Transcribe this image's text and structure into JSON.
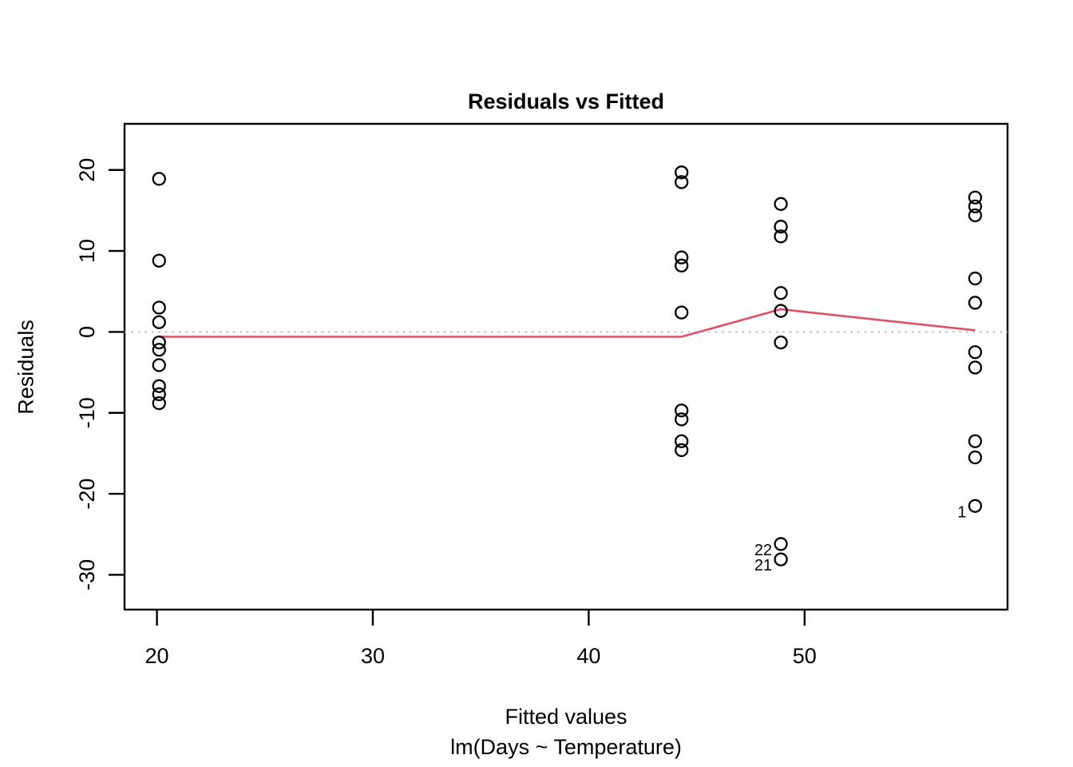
{
  "chart_data": {
    "type": "scatter",
    "title": "Residuals vs Fitted",
    "xlabel": "Fitted values",
    "sublabel": "lm(Days ~ Temperature)",
    "ylabel": "Residuals",
    "x_ticks": [
      20,
      30,
      40,
      50
    ],
    "y_ticks": [
      -30,
      -20,
      -10,
      0,
      10,
      20
    ],
    "xlim": [
      18.5,
      59.4
    ],
    "ylim": [
      -34.3,
      25.7
    ],
    "grid": false,
    "point_color": "#000000",
    "smooth_line_color": "#db5168",
    "reference_line_color": "#bdbdbd",
    "reference_line_y": 0,
    "groups": [
      {
        "fitted": 20.1,
        "residuals": [
          18.9,
          8.8,
          3.0,
          1.2,
          -1.3,
          -2.2,
          -4.1,
          -6.7,
          -7.7,
          -8.8
        ]
      },
      {
        "fitted": 44.3,
        "residuals": [
          19.7,
          18.5,
          9.2,
          8.2,
          2.4,
          -9.7,
          -10.8,
          -13.5,
          -14.6
        ]
      },
      {
        "fitted": 48.9,
        "residuals": [
          15.8,
          13.0,
          11.8,
          4.8,
          2.6,
          -1.3,
          -26.2,
          -28.1
        ]
      },
      {
        "fitted": 57.9,
        "residuals": [
          16.6,
          15.5,
          14.4,
          6.6,
          3.6,
          -2.5,
          -4.4,
          -13.5,
          -15.5,
          -21.5
        ]
      }
    ],
    "labeled_points": [
      {
        "label": "1",
        "fitted": 57.9,
        "residual": -21.5
      },
      {
        "label": "22",
        "fitted": 48.9,
        "residual": -26.2
      },
      {
        "label": "21",
        "fitted": 48.9,
        "residual": -28.1
      }
    ],
    "smooth_line": [
      {
        "x": 20.1,
        "y": -0.6
      },
      {
        "x": 44.3,
        "y": -0.6
      },
      {
        "x": 48.9,
        "y": 2.8
      },
      {
        "x": 57.9,
        "y": 0.2
      }
    ]
  }
}
